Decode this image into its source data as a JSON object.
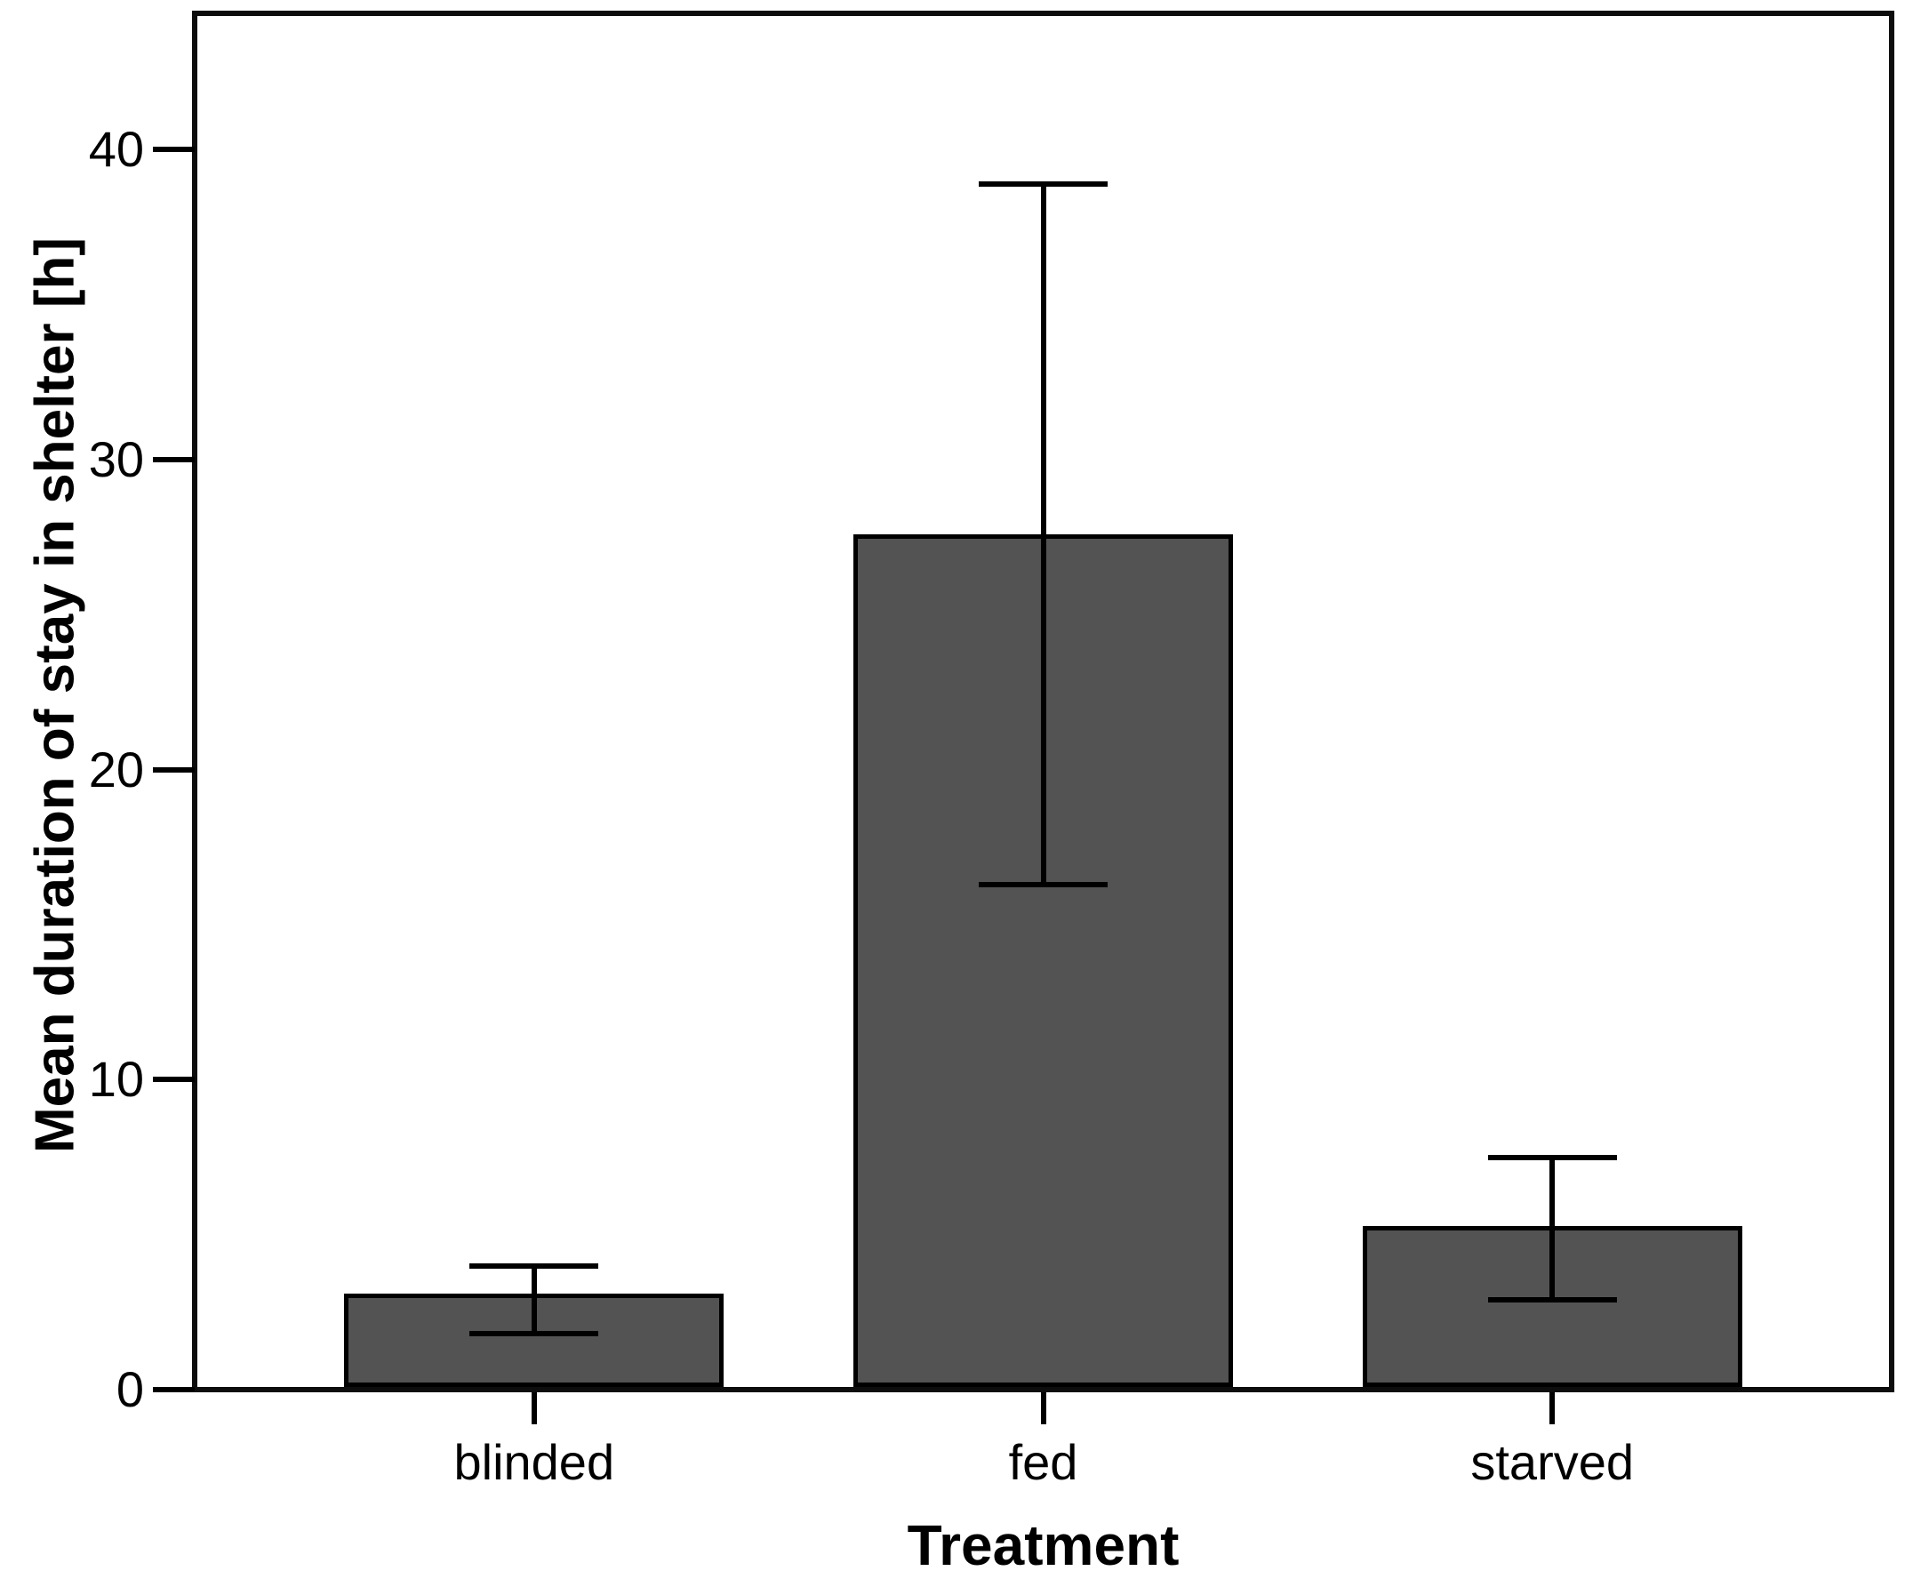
{
  "chart_data": {
    "type": "bar",
    "title": "",
    "xlabel": "Treatment",
    "ylabel": "Mean duration of stay in shelter [h]",
    "categories": [
      "blinded",
      "fed",
      "starved"
    ],
    "series": [
      {
        "name": "Mean duration of stay in shelter",
        "values": [
          3.0,
          27.5,
          5.2
        ],
        "error_low": [
          1.8,
          16.3,
          2.9
        ],
        "error_high": [
          4.0,
          38.9,
          7.5
        ]
      }
    ],
    "yticks": [
      0,
      10,
      20,
      30,
      40
    ],
    "ylim": [
      0,
      44.4
    ],
    "grid": false,
    "legend_position": "none",
    "bar_color": "#535353",
    "bar_border_color": "#000000",
    "axis_color": "#0d0d0d",
    "background_color": "#ffffff"
  }
}
